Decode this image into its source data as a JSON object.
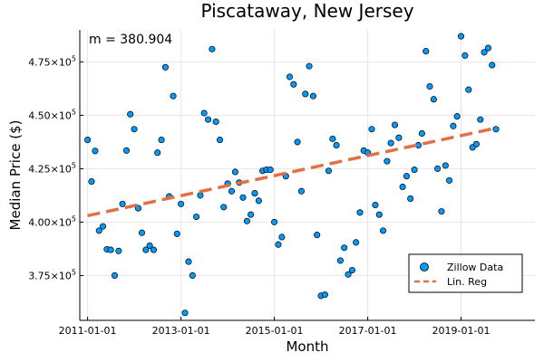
{
  "chart_data": {
    "type": "scatter",
    "title": "Piscataway, New Jersey",
    "xlabel": "Month",
    "ylabel": "Median Price ($)",
    "annotation": "m = 380.904",
    "x_ticks": [
      {
        "date": "2011-01-01",
        "label": "2011-01-01"
      },
      {
        "date": "2013-01-01",
        "label": "2013-01-01"
      },
      {
        "date": "2015-01-01",
        "label": "2015-01-01"
      },
      {
        "date": "2017-01-01",
        "label": "2017-01-01"
      },
      {
        "date": "2019-01-01",
        "label": "2019-01-01"
      }
    ],
    "y_ticks": [
      {
        "value": 375000,
        "mantissa": "3.75",
        "exponent": "5"
      },
      {
        "value": 400000,
        "mantissa": "4.00",
        "exponent": "5"
      },
      {
        "value": 425000,
        "mantissa": "4.25",
        "exponent": "5"
      },
      {
        "value": 450000,
        "mantissa": "4.50",
        "exponent": "5"
      },
      {
        "value": 475000,
        "mantissa": "4.75",
        "exponent": "5"
      }
    ],
    "xlim": [
      "2010-11-01",
      "2020-08-01"
    ],
    "ylim": [
      354000,
      490000
    ],
    "grid": true,
    "legend_position": "bottom-right",
    "series": [
      {
        "name": "Zillow Data",
        "kind": "scatter",
        "color": "#009AFA",
        "x": [
          "2011-01-01",
          "2011-02-01",
          "2011-03-01",
          "2011-04-01",
          "2011-05-01",
          "2011-06-01",
          "2011-07-01",
          "2011-08-01",
          "2011-09-01",
          "2011-10-01",
          "2011-11-01",
          "2011-12-01",
          "2012-01-01",
          "2012-02-01",
          "2012-03-01",
          "2012-04-01",
          "2012-05-01",
          "2012-06-01",
          "2012-07-01",
          "2012-08-01",
          "2012-09-01",
          "2012-10-01",
          "2012-11-01",
          "2012-12-01",
          "2013-01-01",
          "2013-02-01",
          "2013-03-01",
          "2013-04-01",
          "2013-05-01",
          "2013-06-01",
          "2013-07-01",
          "2013-08-01",
          "2013-09-01",
          "2013-10-01",
          "2013-11-01",
          "2013-12-01",
          "2014-01-01",
          "2014-02-01",
          "2014-03-01",
          "2014-04-01",
          "2014-05-01",
          "2014-06-01",
          "2014-07-01",
          "2014-08-01",
          "2014-09-01",
          "2014-10-01",
          "2014-11-01",
          "2014-12-01",
          "2015-01-01",
          "2015-02-01",
          "2015-03-01",
          "2015-04-01",
          "2015-05-01",
          "2015-06-01",
          "2015-07-01",
          "2015-08-01",
          "2015-09-01",
          "2015-10-01",
          "2015-11-01",
          "2015-12-01",
          "2016-01-01",
          "2016-02-01",
          "2016-03-01",
          "2016-04-01",
          "2016-05-01",
          "2016-06-01",
          "2016-07-01",
          "2016-08-01",
          "2016-09-01",
          "2016-10-01",
          "2016-11-01",
          "2016-12-01",
          "2017-01-01",
          "2017-02-01",
          "2017-03-01",
          "2017-04-01",
          "2017-05-01",
          "2017-06-01",
          "2017-07-01",
          "2017-08-01",
          "2017-09-01",
          "2017-10-01",
          "2017-11-01",
          "2017-12-01",
          "2018-01-01",
          "2018-02-01",
          "2018-03-01",
          "2018-04-01",
          "2018-05-01",
          "2018-06-01",
          "2018-07-01",
          "2018-08-01",
          "2018-09-01",
          "2018-10-01",
          "2018-11-01",
          "2018-12-01",
          "2019-01-01",
          "2019-02-01",
          "2019-03-01",
          "2019-04-01",
          "2019-05-01",
          "2019-06-01",
          "2019-07-01",
          "2019-08-01",
          "2019-09-01",
          "2019-10-01"
        ],
        "y": [
          438500,
          419000,
          433300,
          396000,
          398000,
          387300,
          387000,
          375000,
          386500,
          408500,
          433500,
          450500,
          443500,
          406500,
          395000,
          387000,
          389000,
          387000,
          432500,
          438500,
          472500,
          412000,
          459000,
          394500,
          408500,
          357500,
          381500,
          375000,
          402500,
          412500,
          451000,
          448000,
          481000,
          447000,
          438500,
          407000,
          418000,
          414500,
          423500,
          418500,
          411500,
          400500,
          403500,
          413500,
          410000,
          424000,
          424500,
          424500,
          400000,
          389500,
          393000,
          421500,
          468000,
          464500,
          437500,
          414500,
          460000,
          473000,
          459000,
          394000,
          365500,
          366000,
          424000,
          439000,
          436000,
          382000,
          388000,
          375500,
          377500,
          390500,
          404500,
          433500,
          432500,
          443500,
          408000,
          403500,
          396000,
          428500,
          437000,
          445500,
          439500,
          416500,
          421500,
          411000,
          424500,
          436000,
          441500,
          480000,
          463500,
          457500,
          425000,
          405000,
          426500,
          419500,
          445000,
          449500,
          487000,
          478000,
          462000,
          435000,
          436500,
          448000,
          479500,
          481500,
          473500,
          443500
        ]
      },
      {
        "name": "Lin. Reg",
        "kind": "line",
        "color": "#E26F46",
        "style": "dashed",
        "x": [
          "2011-01-01",
          "2019-10-01"
        ],
        "y": [
          403000,
          444000
        ]
      }
    ]
  }
}
